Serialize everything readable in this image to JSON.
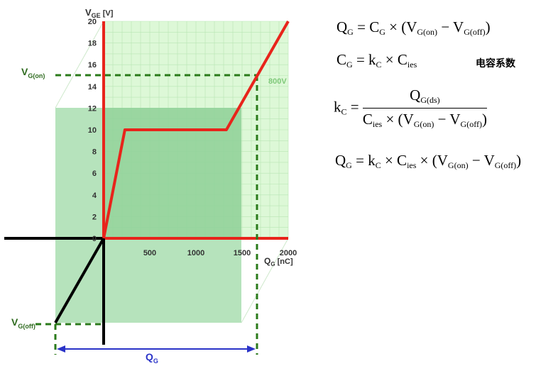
{
  "chart_data": {
    "type": "line",
    "xlabel": "Q_G [nC]",
    "ylabel": "V_GE [V]",
    "xlim": [
      0,
      2000
    ],
    "ylim": [
      0,
      20
    ],
    "x_ticks": [
      "500",
      "1000",
      "1500",
      "2000"
    ],
    "y_ticks": [
      "0",
      "2",
      "4",
      "6",
      "8",
      "10",
      "12",
      "14",
      "16",
      "18",
      "20"
    ],
    "series": [
      {
        "name": "800V",
        "x": [
          0,
          230,
          1330,
          2000
        ],
        "y": [
          0,
          10,
          10,
          20
        ]
      }
    ],
    "annotations": {
      "vg_on": "V_G(on)",
      "vg_off": "V_G(off)",
      "qg_arrow": "Q_G",
      "vg_on_level": 15,
      "qg_at_vg_on": 1650
    },
    "grid": true
  },
  "labels": {
    "y_axis_main": "V",
    "y_axis_sub": "GE",
    "y_axis_unit": " [V]",
    "x_axis_main": "Q",
    "x_axis_sub": "G",
    "x_axis_unit": " [nC]",
    "vgon_main": "V",
    "vgon_sub": "G(on)",
    "vgoff_main": "V",
    "vgoff_sub": "G(off)",
    "qg_main": "Q",
    "qg_sub": "G",
    "series_label": "800V",
    "origin_tick": "0"
  },
  "formulas": {
    "f1": {
      "Q": "Q",
      "QG": "G",
      "eq": " = ",
      "C": "C",
      "CG": "G",
      "times": " × (",
      "V1": "V",
      "V1s": "G(on)",
      "minus": " − ",
      "V2": "V",
      "V2s": "G(off)",
      "close": ")"
    },
    "f2": {
      "C": "C",
      "CG": "G",
      "eq": " = ",
      "k": "k",
      "kC": "C",
      "times": " × ",
      "Ci": "C",
      "Cis": "ies"
    },
    "cn_label": "电容系数",
    "f3": {
      "k": "k",
      "kC": "C",
      "eq": " = ",
      "num": "Q",
      "nums": "G(ds)",
      "dC": "C",
      "dCs": "ies",
      "times": " × (",
      "V1": "V",
      "V1s": "G(on)",
      "minus": " − ",
      "V2": "V",
      "V2s": "G(off)",
      "close": ")"
    },
    "f4": {
      "Q": "Q",
      "QG": "G",
      "eq": " = ",
      "k": "k",
      "kC": "C",
      "t1": " × ",
      "Ci": "C",
      "Cis": "ies",
      "t2": " × (",
      "V1": "V",
      "V1s": "G(on)",
      "minus": " − ",
      "V2": "V",
      "V2s": "G(off)",
      "close": ")"
    }
  },
  "colors": {
    "curve": "#e8241b",
    "axis": "#e8241b",
    "dashed": "#2a7a1a",
    "arrow": "#2a33c8",
    "light_green": "#d4f5d0",
    "mid_green": "#8fd49a",
    "grid": "#b8e6b4"
  }
}
